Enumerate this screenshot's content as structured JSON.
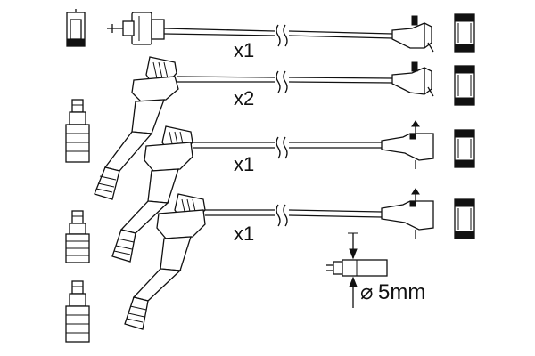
{
  "cables": [
    {
      "quantity_label": "x1"
    },
    {
      "quantity_label": "x2"
    },
    {
      "quantity_label": "x1"
    },
    {
      "quantity_label": "x1"
    }
  ],
  "diameter": {
    "label": "5mm",
    "symbol": "⌀"
  },
  "colors": {
    "line": "#111111",
    "background": "#ffffff"
  }
}
